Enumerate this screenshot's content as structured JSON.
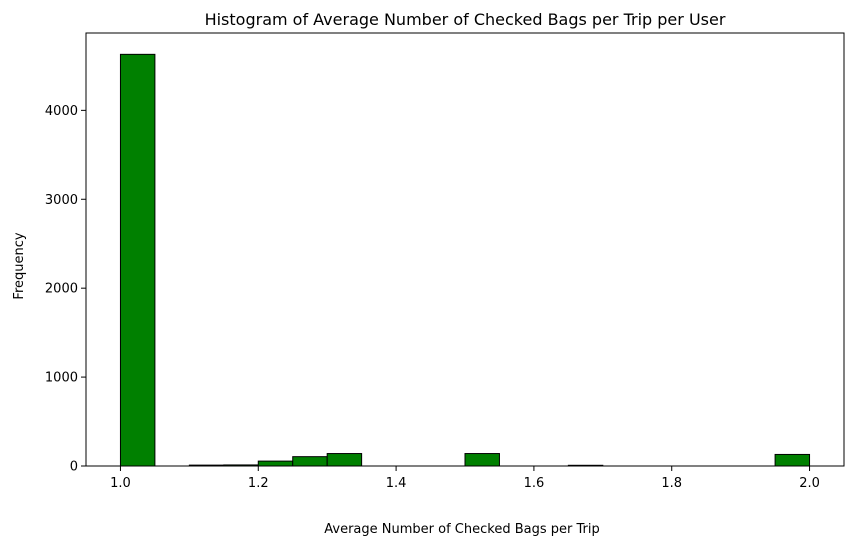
{
  "chart_data": {
    "type": "bar",
    "title": "Histogram of Average Number of Checked Bags per Trip per User",
    "xlabel": "Average Number of Checked Bags per Trip",
    "ylabel": "Frequency",
    "xlim": [
      0.95,
      2.05
    ],
    "ylim": [
      0,
      4870
    ],
    "bin_width": 0.05,
    "bins": [
      {
        "x0": 1.0,
        "x1": 1.05,
        "value": 4630
      },
      {
        "x0": 1.05,
        "x1": 1.1,
        "value": 0
      },
      {
        "x0": 1.1,
        "x1": 1.15,
        "value": 10
      },
      {
        "x0": 1.15,
        "x1": 1.2,
        "value": 12
      },
      {
        "x0": 1.2,
        "x1": 1.25,
        "value": 55
      },
      {
        "x0": 1.25,
        "x1": 1.3,
        "value": 105
      },
      {
        "x0": 1.3,
        "x1": 1.35,
        "value": 140
      },
      {
        "x0": 1.35,
        "x1": 1.4,
        "value": 0
      },
      {
        "x0": 1.4,
        "x1": 1.45,
        "value": 0
      },
      {
        "x0": 1.45,
        "x1": 1.5,
        "value": 0
      },
      {
        "x0": 1.5,
        "x1": 1.55,
        "value": 140
      },
      {
        "x0": 1.55,
        "x1": 1.6,
        "value": 0
      },
      {
        "x0": 1.6,
        "x1": 1.65,
        "value": 0
      },
      {
        "x0": 1.65,
        "x1": 1.7,
        "value": 8
      },
      {
        "x0": 1.7,
        "x1": 1.75,
        "value": 0
      },
      {
        "x0": 1.75,
        "x1": 1.8,
        "value": 0
      },
      {
        "x0": 1.8,
        "x1": 1.85,
        "value": 0
      },
      {
        "x0": 1.85,
        "x1": 1.9,
        "value": 0
      },
      {
        "x0": 1.9,
        "x1": 1.95,
        "value": 0
      },
      {
        "x0": 1.95,
        "x1": 2.0,
        "value": 130
      }
    ],
    "xticks": [
      "1.0",
      "1.2",
      "1.4",
      "1.6",
      "1.8",
      "2.0"
    ],
    "yticks": [
      "0",
      "1000",
      "2000",
      "3000",
      "4000"
    ],
    "bar_color": "#008000",
    "edge_color": "#000000",
    "grid": false,
    "legend": "none"
  }
}
